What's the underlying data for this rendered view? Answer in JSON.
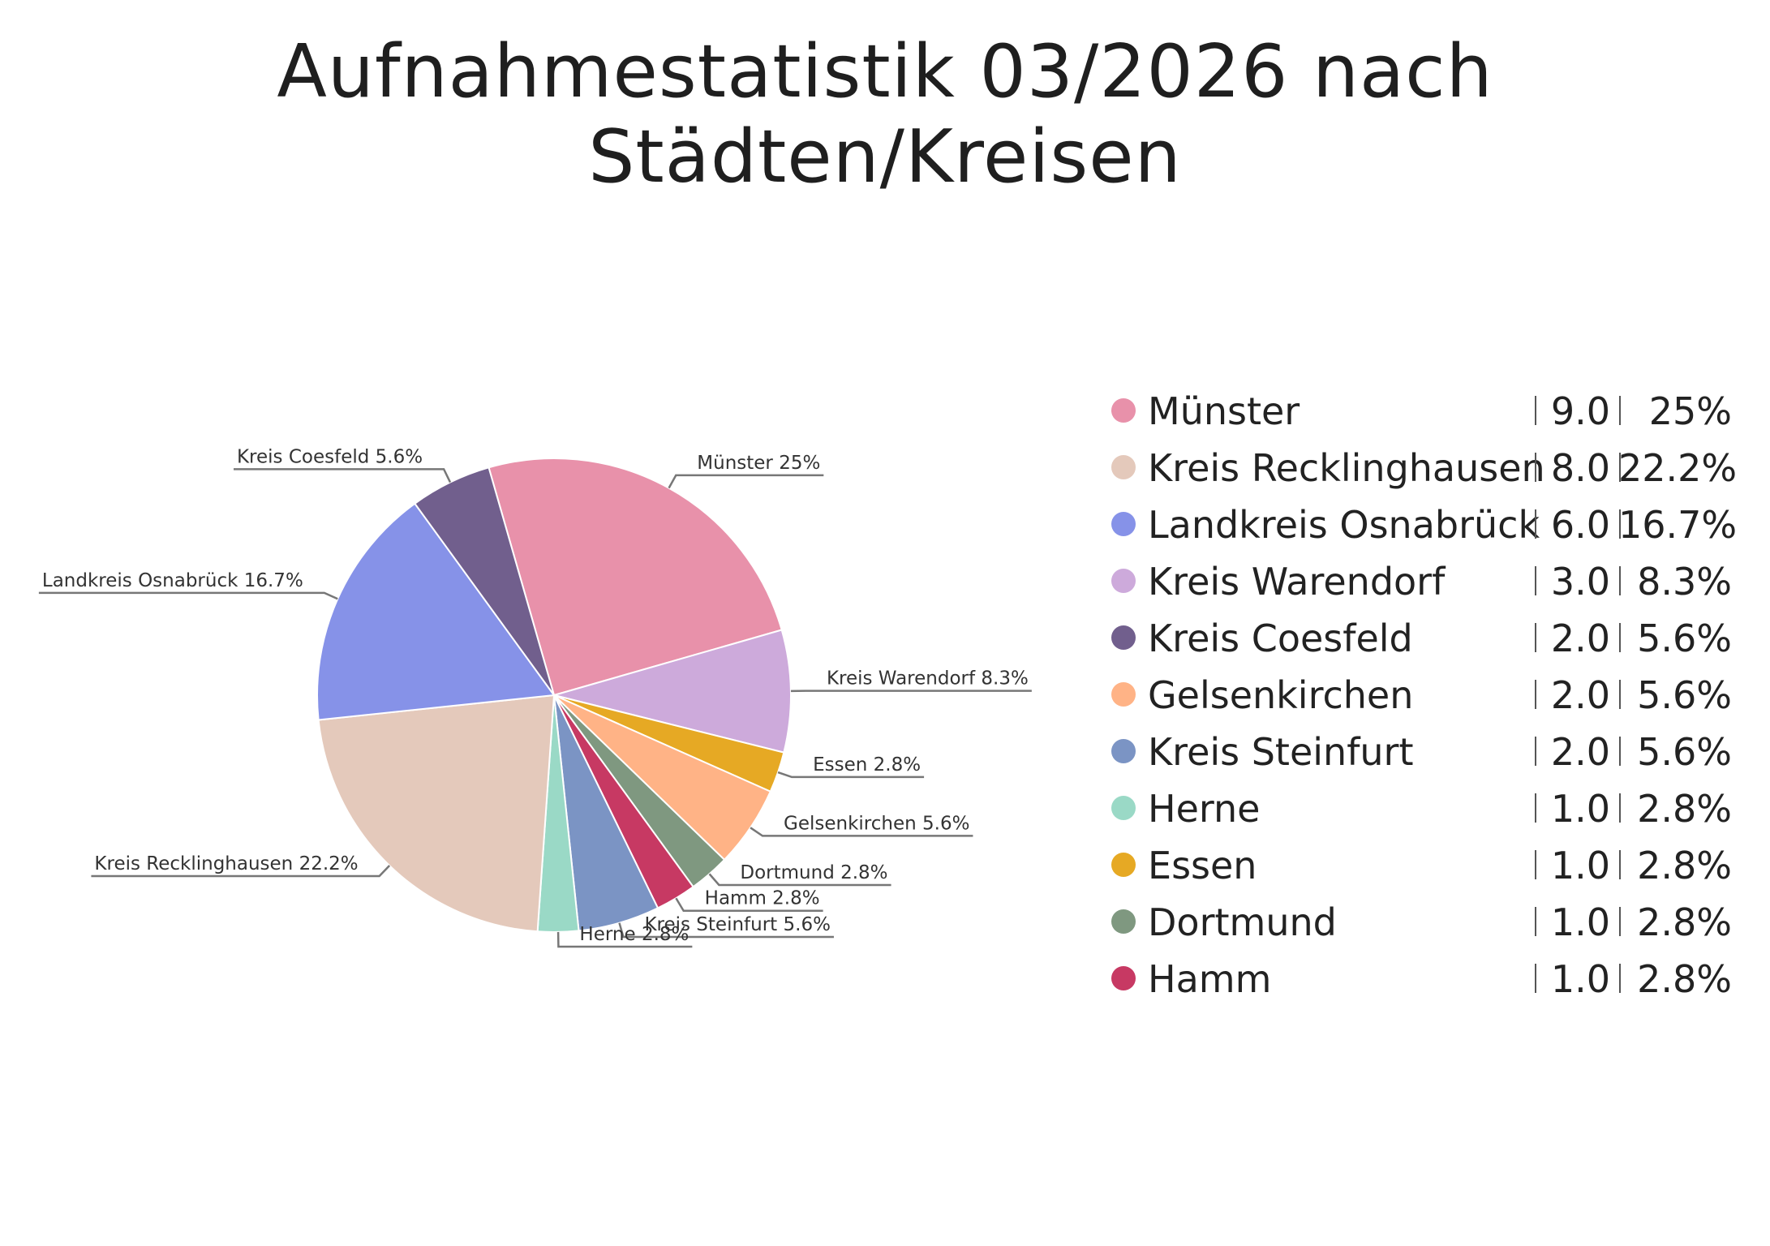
{
  "title": "Aufnahmestatistik 03/2026 nach Städten/Kreisen",
  "chart_data": {
    "type": "pie",
    "title": "Aufnahmestatistik 03/2026 nach Städten/Kreisen",
    "legend_position": "right",
    "slices": [
      {
        "name": "Münster",
        "value": 9.0,
        "value_label": "9.0",
        "percent_label": "25%",
        "slice_label": "Münster 25%",
        "color": "#e891aa"
      },
      {
        "name": "Kreis Warendorf",
        "value": 3.0,
        "value_label": "3.0",
        "percent_label": "8.3%",
        "slice_label": "Kreis Warendorf 8.3%",
        "color": "#cdaadb"
      },
      {
        "name": "Essen",
        "value": 1.0,
        "value_label": "1.0",
        "percent_label": "2.8%",
        "slice_label": "Essen 2.8%",
        "color": "#e6a924"
      },
      {
        "name": "Gelsenkirchen",
        "value": 2.0,
        "value_label": "2.0",
        "percent_label": "5.6%",
        "slice_label": "Gelsenkirchen 5.6%",
        "color": "#ffb386"
      },
      {
        "name": "Dortmund",
        "value": 1.0,
        "value_label": "1.0",
        "percent_label": "2.8%",
        "slice_label": "Dortmund 2.8%",
        "color": "#7f9880"
      },
      {
        "name": "Hamm",
        "value": 1.0,
        "value_label": "1.0",
        "percent_label": "2.8%",
        "slice_label": "Hamm 2.8%",
        "color": "#c73963"
      },
      {
        "name": "Kreis Steinfurt",
        "value": 2.0,
        "value_label": "2.0",
        "percent_label": "5.6%",
        "slice_label": "Kreis Steinfurt 5.6%",
        "color": "#7b94c4"
      },
      {
        "name": "Herne",
        "value": 1.0,
        "value_label": "1.0",
        "percent_label": "2.8%",
        "slice_label": "Herne 2.8%",
        "color": "#9ad9c6"
      },
      {
        "name": "Kreis Recklinghausen",
        "value": 8.0,
        "value_label": "8.0",
        "percent_label": "22.2%",
        "slice_label": "Kreis Recklinghausen 22.2%",
        "color": "#e4c9bb"
      },
      {
        "name": "Landkreis Osnabrück",
        "value": 6.0,
        "value_label": "6.0",
        "percent_label": "16.7%",
        "slice_label": "Landkreis Osnabrück 16.7%",
        "color": "#8692e8"
      },
      {
        "name": "Kreis Coesfeld",
        "value": 2.0,
        "value_label": "2.0",
        "percent_label": "5.6%",
        "slice_label": "Kreis Coesfeld 5.6%",
        "color": "#715f8d"
      }
    ],
    "legend": [
      {
        "name": "Münster",
        "value": "9.0",
        "percent": "25%",
        "color": "#e891aa"
      },
      {
        "name": "Kreis Recklinghausen",
        "value": "8.0",
        "percent": "22.2%",
        "color": "#e4c9bb"
      },
      {
        "name": "Landkreis Osnabrück",
        "value": "6.0",
        "percent": "16.7%",
        "color": "#8692e8"
      },
      {
        "name": "Kreis Warendorf",
        "value": "3.0",
        "percent": "8.3%",
        "color": "#cdaadb"
      },
      {
        "name": "Kreis Coesfeld",
        "value": "2.0",
        "percent": "5.6%",
        "color": "#715f8d"
      },
      {
        "name": "Gelsenkirchen",
        "value": "2.0",
        "percent": "5.6%",
        "color": "#ffb386"
      },
      {
        "name": "Kreis Steinfurt",
        "value": "2.0",
        "percent": "5.6%",
        "color": "#7b94c4"
      },
      {
        "name": "Herne",
        "value": "1.0",
        "percent": "2.8%",
        "color": "#9ad9c6"
      },
      {
        "name": "Essen",
        "value": "1.0",
        "percent": "2.8%",
        "color": "#e6a924"
      },
      {
        "name": "Dortmund",
        "value": "1.0",
        "percent": "2.8%",
        "color": "#7f9880"
      },
      {
        "name": "Hamm",
        "value": "1.0",
        "percent": "2.8%",
        "color": "#c73963"
      }
    ]
  }
}
